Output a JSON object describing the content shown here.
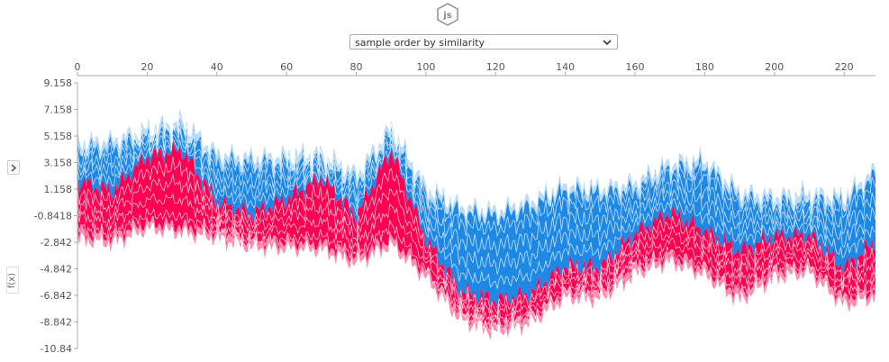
{
  "badge": {
    "label": "js"
  },
  "order_select": {
    "selected": "sample order by similarity"
  },
  "side_toggle": {
    "icon": "chevron-right-icon"
  },
  "colors": {
    "positive": "#ff0052",
    "negative": "#1e88e5",
    "positive_light": "#ff8fb0",
    "negative_light": "#bcdcf7",
    "axis": "#aaaaaa"
  },
  "chart_data": {
    "type": "area",
    "xlabel": "",
    "ylabel": "f(x)",
    "xlim": [
      0,
      229
    ],
    "ylim": [
      -10.84,
      9.158
    ],
    "x_ticks": [
      0,
      20,
      40,
      60,
      80,
      100,
      120,
      140,
      160,
      180,
      200,
      220
    ],
    "x_tick_labels": [
      "0",
      "20",
      "40",
      "60",
      "80",
      "100",
      "120",
      "140",
      "160",
      "180",
      "200",
      "220"
    ],
    "y_ticks": [
      9.158,
      7.158,
      5.158,
      3.158,
      1.158,
      -0.8418,
      -2.842,
      -4.842,
      -6.842,
      -8.842,
      -10.84
    ],
    "y_tick_labels": [
      "9.158",
      "7.158",
      "5.158",
      "3.158",
      "1.158",
      "-0.8418",
      "-2.842",
      "-4.842",
      "-6.842",
      "-8.842",
      "-10.84"
    ],
    "x": [
      0,
      10,
      20,
      30,
      40,
      50,
      60,
      70,
      80,
      90,
      100,
      110,
      120,
      130,
      140,
      150,
      160,
      170,
      180,
      190,
      200,
      210,
      220,
      229
    ],
    "upper_bound": [
      4.6,
      4.8,
      5.6,
      6.2,
      3.8,
      3.5,
      3.6,
      3.8,
      2.2,
      5.8,
      1.2,
      -0.2,
      -0.5,
      0.2,
      1.4,
      1.2,
      1.6,
      3.1,
      3.3,
      0.9,
      0.6,
      0.8,
      0.5,
      2.6
    ],
    "prediction": [
      1.7,
      1.0,
      3.6,
      4.1,
      0.2,
      -0.7,
      0.4,
      2.0,
      -0.9,
      4.1,
      -2.6,
      -6.5,
      -7.2,
      -6.7,
      -4.6,
      -4.7,
      -2.2,
      -0.6,
      -2.0,
      -3.5,
      -2.4,
      -2.3,
      -4.8,
      -2.8
    ],
    "lower_bound": [
      -2.6,
      -2.9,
      -1.8,
      -2.1,
      -2.5,
      -3.2,
      -3.3,
      -3.4,
      -4.4,
      -3.0,
      -5.5,
      -8.7,
      -9.6,
      -8.9,
      -7.0,
      -7.1,
      -5.2,
      -4.3,
      -5.3,
      -7.2,
      -5.5,
      -5.1,
      -7.6,
      -6.9
    ],
    "series": [
      {
        "name": "",
        "values": [
          4.6,
          4.8,
          5.6,
          6.2,
          3.8,
          3.5,
          3.6,
          3.8,
          2.2,
          5.8,
          1.2,
          -0.2,
          -0.5,
          0.2,
          1.4,
          1.2,
          1.6,
          3.1,
          3.3,
          0.9,
          0.6,
          0.8,
          0.5,
          2.6
        ]
      },
      {
        "name": "",
        "values": [
          1.7,
          1.0,
          3.6,
          4.1,
          0.2,
          -0.7,
          0.4,
          2.0,
          -0.9,
          4.1,
          -2.6,
          -6.5,
          -7.2,
          -6.7,
          -4.6,
          -4.7,
          -2.2,
          -0.6,
          -2.0,
          -3.5,
          -2.4,
          -2.3,
          -4.8,
          -2.8
        ]
      },
      {
        "name": "",
        "values": [
          -2.6,
          -2.9,
          -1.8,
          -2.1,
          -2.5,
          -3.2,
          -3.3,
          -3.4,
          -4.4,
          -3.0,
          -5.5,
          -8.7,
          -9.6,
          -8.9,
          -7.0,
          -7.1,
          -5.2,
          -4.3,
          -5.3,
          -7.2,
          -5.5,
          -5.1,
          -7.6,
          -6.9
        ]
      }
    ],
    "grid": false,
    "legend": "none"
  }
}
